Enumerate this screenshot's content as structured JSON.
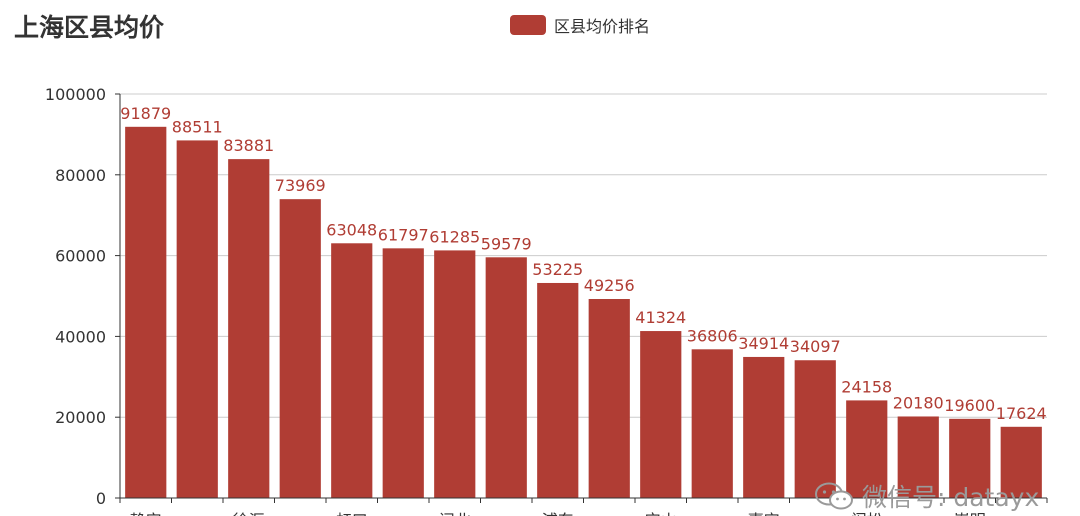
{
  "chart_data": {
    "type": "bar",
    "title": "上海区县均价",
    "legend": {
      "label": "区县均价排名",
      "position": "top-center"
    },
    "series": [
      {
        "name": "区县均价排名",
        "color": "#b03d34"
      }
    ],
    "categories": [
      "静安",
      "",
      "徐汇",
      "",
      "虹口",
      "",
      "闸北",
      "",
      "浦东",
      "",
      "宝山",
      "",
      "嘉定",
      "",
      "闵松",
      "",
      "崇明",
      ""
    ],
    "values": [
      91879,
      88511,
      83881,
      73969,
      63048,
      61797,
      61285,
      59579,
      53225,
      49256,
      41324,
      36806,
      34914,
      34097,
      24158,
      20180,
      19600,
      17624
    ],
    "ylim": [
      0,
      100000
    ],
    "yticks": [
      0,
      20000,
      40000,
      60000,
      80000,
      100000
    ],
    "grid": true,
    "bar_color": "#b03d34",
    "label_color": "#b03d34"
  },
  "watermark": {
    "text": "微信号: datayx",
    "icon": "wechat-icon"
  }
}
